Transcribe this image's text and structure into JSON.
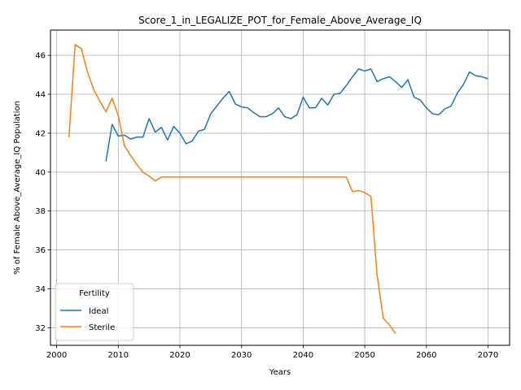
{
  "chart_data": {
    "type": "line",
    "title": "Score_1_in_LEGALIZE_POT_for_Female_Above_Average_IQ",
    "xlabel": "Years",
    "ylabel": "% of Female Above_Average_IQ Population",
    "xlim": [
      1999,
      2073.5
    ],
    "ylim": [
      31.1,
      47.3
    ],
    "xticks": [
      2000,
      2010,
      2020,
      2030,
      2040,
      2050,
      2060,
      2070
    ],
    "yticks": [
      32,
      34,
      36,
      38,
      40,
      42,
      44,
      46
    ],
    "grid": true,
    "legend": {
      "title": "Fertility",
      "position": "lower-left"
    },
    "series": [
      {
        "name": "Ideal",
        "color": "#1f77b4",
        "x": [
          2008,
          2009,
          2010,
          2011,
          2012,
          2013,
          2014,
          2015,
          2016,
          2017,
          2018,
          2019,
          2020,
          2021,
          2022,
          2023,
          2024,
          2025,
          2026,
          2027,
          2028,
          2029,
          2030,
          2031,
          2032,
          2033,
          2034,
          2035,
          2036,
          2037,
          2038,
          2039,
          2040,
          2041,
          2042,
          2043,
          2044,
          2045,
          2046,
          2047,
          2048,
          2049,
          2050,
          2051,
          2052,
          2053,
          2054,
          2055,
          2056,
          2057,
          2058,
          2059,
          2060,
          2061,
          2062,
          2063,
          2064,
          2065,
          2066,
          2067,
          2068,
          2069,
          2070
        ],
        "y": [
          40.55,
          42.45,
          41.85,
          41.9,
          41.7,
          41.8,
          41.8,
          42.75,
          42.05,
          42.3,
          41.65,
          42.35,
          42.0,
          41.45,
          41.6,
          42.1,
          42.2,
          43.0,
          43.4,
          43.8,
          44.15,
          43.5,
          43.35,
          43.3,
          43.05,
          42.85,
          42.85,
          43.0,
          43.3,
          42.85,
          42.75,
          42.95,
          43.85,
          43.3,
          43.3,
          43.8,
          43.45,
          44.0,
          44.05,
          44.45,
          44.9,
          45.3,
          45.2,
          45.3,
          44.65,
          44.8,
          44.9,
          44.65,
          44.35,
          44.75,
          43.85,
          43.7,
          43.3,
          43.0,
          42.95,
          43.25,
          43.4,
          44.05,
          44.5,
          45.15,
          44.95,
          44.9,
          44.8
        ]
      },
      {
        "name": "Sterile",
        "color": "#ff7f0e",
        "x": [
          2002,
          2003,
          2004,
          2005,
          2006,
          2007,
          2008,
          2009,
          2010,
          2011,
          2012,
          2013,
          2014,
          2015,
          2016,
          2017,
          2018,
          2019,
          2020,
          2021,
          2022,
          2023,
          2024,
          2025,
          2026,
          2027,
          2028,
          2029,
          2030,
          2031,
          2032,
          2033,
          2034,
          2035,
          2036,
          2037,
          2038,
          2039,
          2040,
          2041,
          2042,
          2043,
          2044,
          2045,
          2046,
          2047,
          2048,
          2049,
          2050,
          2051,
          2052,
          2053,
          2054,
          2055
        ],
        "y": [
          41.8,
          46.55,
          46.35,
          45.15,
          44.25,
          43.65,
          43.1,
          43.8,
          42.9,
          41.35,
          40.85,
          40.4,
          40.0,
          39.8,
          39.55,
          39.75,
          39.75,
          39.75,
          39.75,
          39.75,
          39.75,
          39.75,
          39.75,
          39.75,
          39.75,
          39.75,
          39.75,
          39.75,
          39.75,
          39.75,
          39.75,
          39.75,
          39.75,
          39.75,
          39.75,
          39.75,
          39.75,
          39.75,
          39.75,
          39.75,
          39.75,
          39.75,
          39.75,
          39.75,
          39.75,
          39.75,
          39.0,
          39.05,
          38.95,
          38.75,
          34.7,
          32.5,
          32.15,
          31.7
        ]
      }
    ]
  }
}
